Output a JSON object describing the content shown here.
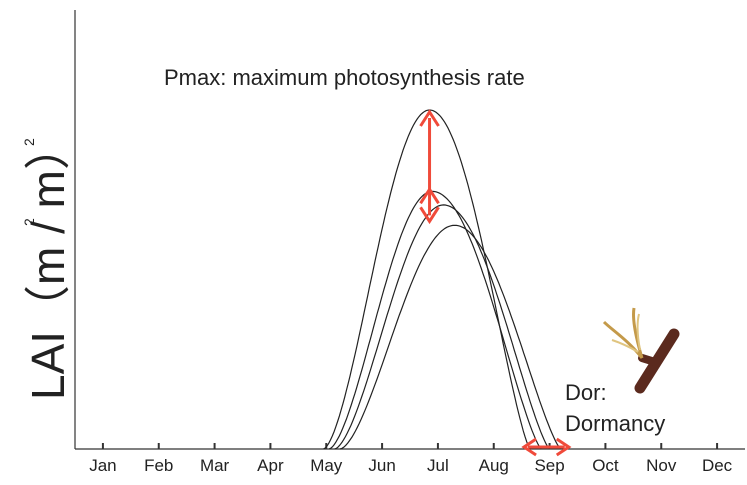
{
  "chart_data": {
    "type": "line",
    "title": "",
    "xlabel": "",
    "ylabel": "LAI (m² / m²)",
    "ylabel_parts": {
      "main": "LAI（m",
      "sep": " / m",
      "close": "）",
      "sup": "2"
    },
    "categories": [
      "Jan",
      "Feb",
      "Mar",
      "Apr",
      "May",
      "Jun",
      "Jul",
      "Aug",
      "Sep",
      "Oct",
      "Nov",
      "Dec"
    ],
    "x_unit": "month",
    "x_range": [
      0.5,
      12.5
    ],
    "y_range": [
      0,
      1
    ],
    "y_ticks": false,
    "grid": false,
    "series": [
      {
        "start": 4.95,
        "peak_x": 6.85,
        "peak_y": 1.0,
        "end": 8.65
      },
      {
        "start": 5.05,
        "peak_x": 6.9,
        "peak_y": 0.76,
        "end": 8.85
      },
      {
        "start": 5.15,
        "peak_x": 7.1,
        "peak_y": 0.72,
        "end": 9.0
      },
      {
        "start": 5.25,
        "peak_x": 7.3,
        "peak_y": 0.66,
        "end": 9.2
      }
    ],
    "annotations": {
      "pmax_label": "Pmax: maximum photosynthesis rate",
      "dor_label_line1": "Dor:",
      "dor_label_line2": "Dormancy"
    },
    "arrows": {
      "pmax": {
        "x": 6.85,
        "y_from": 1.0,
        "y_to": 0.76,
        "color": "#f04a3a"
      },
      "dor": {
        "x_from": 8.65,
        "x_to": 9.2,
        "color": "#f04a3a"
      }
    },
    "colors": {
      "line": "#222222",
      "arrow": "#f04a3a",
      "branch": "#5b2a1e",
      "leaf": "#c49a4a"
    }
  }
}
